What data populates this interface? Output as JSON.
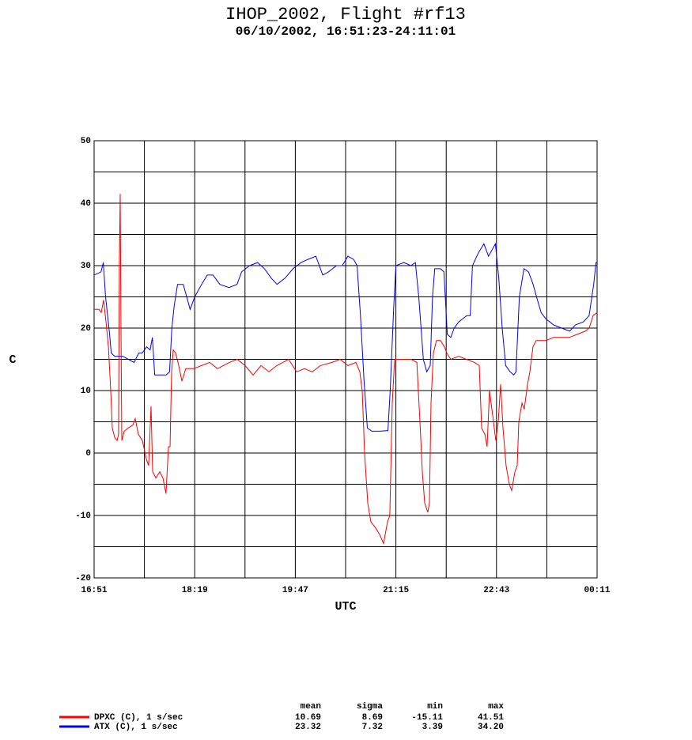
{
  "chart_data": {
    "type": "line",
    "title": "IHOP_2002, Flight #rf13",
    "subtitle": "06/10/2002, 16:51:23-24:11:01",
    "xlabel": "UTC",
    "ylabel": "C",
    "grid": true,
    "xlim": [
      1011,
      1451
    ],
    "xticks": [
      {
        "value": 1011,
        "label": "16:51"
      },
      {
        "value": 1055,
        "label": null
      },
      {
        "value": 1099,
        "label": "18:19"
      },
      {
        "value": 1143,
        "label": null
      },
      {
        "value": 1187,
        "label": "19:47"
      },
      {
        "value": 1231,
        "label": null
      },
      {
        "value": 1275,
        "label": "21:15"
      },
      {
        "value": 1319,
        "label": null
      },
      {
        "value": 1363,
        "label": "22:43"
      },
      {
        "value": 1407,
        "label": null
      },
      {
        "value": 1451,
        "label": "00:11"
      }
    ],
    "ylim": [
      -20,
      50
    ],
    "yticks": [
      -20,
      {
        "value": -15,
        "label": null
      },
      -10,
      {
        "value": -5,
        "label": null
      },
      0,
      {
        "value": 5,
        "label": null
      },
      10,
      {
        "value": 15,
        "label": null
      },
      20,
      {
        "value": 25,
        "label": null
      },
      30,
      {
        "value": 35,
        "label": null
      },
      40,
      {
        "value": 45,
        "label": null
      },
      50
    ],
    "series": [
      {
        "name": "DPXC (C), 1 s/sec",
        "color": "#ff0000",
        "x": [
          1011.0,
          1015.2,
          1017.2,
          1019.3,
          1021.4,
          1023.5,
          1025.5,
          1026.9,
          1029.0,
          1031.1,
          1032.4,
          1033.1,
          1033.8,
          1034.5,
          1035.2,
          1037.3,
          1040.7,
          1044.9,
          1047.0,
          1049.7,
          1053.2,
          1056.7,
          1058.7,
          1060.8,
          1062.2,
          1065.0,
          1068.4,
          1071.2,
          1073.9,
          1076.0,
          1077.4,
          1078.8,
          1080.2,
          1082.3,
          1085.0,
          1087.8,
          1091.2,
          1098.1,
          1105.1,
          1112.0,
          1118.9,
          1129.3,
          1136.2,
          1143.1,
          1150.1,
          1157.0,
          1163.9,
          1170.8,
          1181.2,
          1188.1,
          1195.0,
          1201.9,
          1208.9,
          1219.2,
          1226.2,
          1233.1,
          1240.0,
          1243.4,
          1245.5,
          1247.6,
          1250.4,
          1253.1,
          1257.3,
          1260.7,
          1264.2,
          1267.7,
          1269.7,
          1271.8,
          1273.9,
          1281.5,
          1288.4,
          1293.3,
          1296.0,
          1298.1,
          1300.2,
          1302.9,
          1304.3,
          1305.7,
          1307.8,
          1310.5,
          1314.0,
          1317.5,
          1319.5,
          1323.0,
          1329.9,
          1336.8,
          1343.8,
          1347.9,
          1350.0,
          1352.8,
          1354.8,
          1356.9,
          1359.0,
          1362.4,
          1364.5,
          1366.6,
          1368.7,
          1371.4,
          1374.2,
          1376.3,
          1379.1,
          1381.1,
          1382.5,
          1385.3,
          1387.3,
          1390.1,
          1392.2,
          1394.9,
          1397.7,
          1406.0,
          1412.9,
          1419.8,
          1426.7,
          1433.6,
          1440.6,
          1444.1,
          1447.5,
          1451.0
        ],
        "values": [
          23,
          23,
          22.5,
          24.5,
          21,
          17,
          10,
          4,
          2.5,
          2,
          3,
          30,
          41.5,
          20,
          2,
          3.5,
          4,
          4.5,
          5.5,
          3,
          2,
          -1,
          -2,
          7.5,
          -3,
          -4,
          -3,
          -4,
          -6.5,
          1,
          1,
          13,
          16.5,
          16,
          14,
          11.5,
          13.5,
          13.5,
          14,
          14.5,
          13.5,
          14.5,
          15,
          14,
          12.5,
          14,
          13,
          14,
          15,
          13,
          13.5,
          13,
          14,
          14.5,
          15,
          14,
          14.5,
          13,
          10,
          0,
          -8,
          -11,
          -12,
          -13,
          -14.5,
          -11,
          -10,
          8,
          15,
          15,
          15,
          14.5,
          5,
          -3,
          -8,
          -9.5,
          -8,
          8,
          16,
          18,
          18,
          17,
          16,
          15,
          15.5,
          15,
          14.5,
          14,
          4,
          3,
          1,
          10,
          7,
          2,
          5,
          11,
          4,
          -2,
          -5,
          -6,
          -3,
          -2,
          5,
          8,
          7,
          11,
          13,
          17,
          18,
          18,
          18.5,
          18.5,
          18.5,
          19,
          19.5,
          20,
          22,
          22.5
        ]
      },
      {
        "name": "ATX (C), 1 s/sec",
        "color": "#0000ff",
        "x": [
          1011,
          1017,
          1019,
          1021,
          1024,
          1026,
          1029,
          1036,
          1041,
          1046,
          1050,
          1053,
          1057,
          1060,
          1062,
          1064,
          1067,
          1074,
          1077,
          1079,
          1081,
          1084,
          1089,
          1092,
          1095,
          1099,
          1105,
          1110,
          1115,
          1121,
          1129,
          1136,
          1140,
          1147,
          1154,
          1160,
          1166,
          1171,
          1178,
          1185,
          1192,
          1198,
          1205,
          1211,
          1216,
          1223,
          1228,
          1233,
          1238,
          1241,
          1244,
          1247,
          1250,
          1254,
          1261,
          1268,
          1270,
          1273,
          1275,
          1282,
          1288,
          1292,
          1295,
          1299,
          1302,
          1305,
          1307,
          1309,
          1314,
          1317,
          1320,
          1323,
          1326,
          1330,
          1337,
          1340,
          1342,
          1347,
          1352,
          1356,
          1362,
          1365,
          1368,
          1371,
          1375,
          1378,
          1380,
          1383,
          1387,
          1391,
          1395,
          1398,
          1402,
          1406,
          1413,
          1420,
          1427,
          1432,
          1439,
          1444,
          1448,
          1450,
          1451
        ],
        "values": [
          28.5,
          29,
          30.5,
          25,
          20,
          16,
          15.5,
          15.5,
          15,
          14.5,
          16,
          16,
          17,
          16.5,
          18.5,
          12.5,
          12.5,
          12.5,
          13,
          20,
          23.5,
          27,
          27,
          25,
          23,
          25,
          27,
          28.5,
          28.5,
          27,
          26.5,
          27,
          29,
          30,
          30.5,
          29.5,
          28,
          27,
          28,
          29.5,
          30.5,
          31,
          31.5,
          28.5,
          29,
          30,
          30,
          31.5,
          31,
          30,
          22,
          12,
          4,
          3.5,
          3.5,
          3.6,
          10,
          23,
          30,
          30.5,
          30,
          30.5,
          25,
          15,
          13,
          14,
          25,
          29.5,
          29.5,
          29,
          19,
          18.5,
          20,
          21,
          22,
          22,
          30,
          32,
          33.5,
          31.5,
          33.5,
          28,
          20,
          14,
          13,
          12.5,
          13,
          25,
          29.5,
          29,
          27,
          25,
          22.5,
          21.5,
          20.5,
          20,
          19.5,
          20.5,
          21,
          22,
          27,
          30.5,
          30.5
        ]
      }
    ],
    "stats": {
      "columns": [
        "mean",
        "sigma",
        "min",
        "max"
      ],
      "rows": [
        [
          "10.69",
          "8.69",
          "-15.11",
          "41.51"
        ],
        [
          "23.32",
          "7.32",
          "3.39",
          "34.20"
        ]
      ]
    }
  }
}
